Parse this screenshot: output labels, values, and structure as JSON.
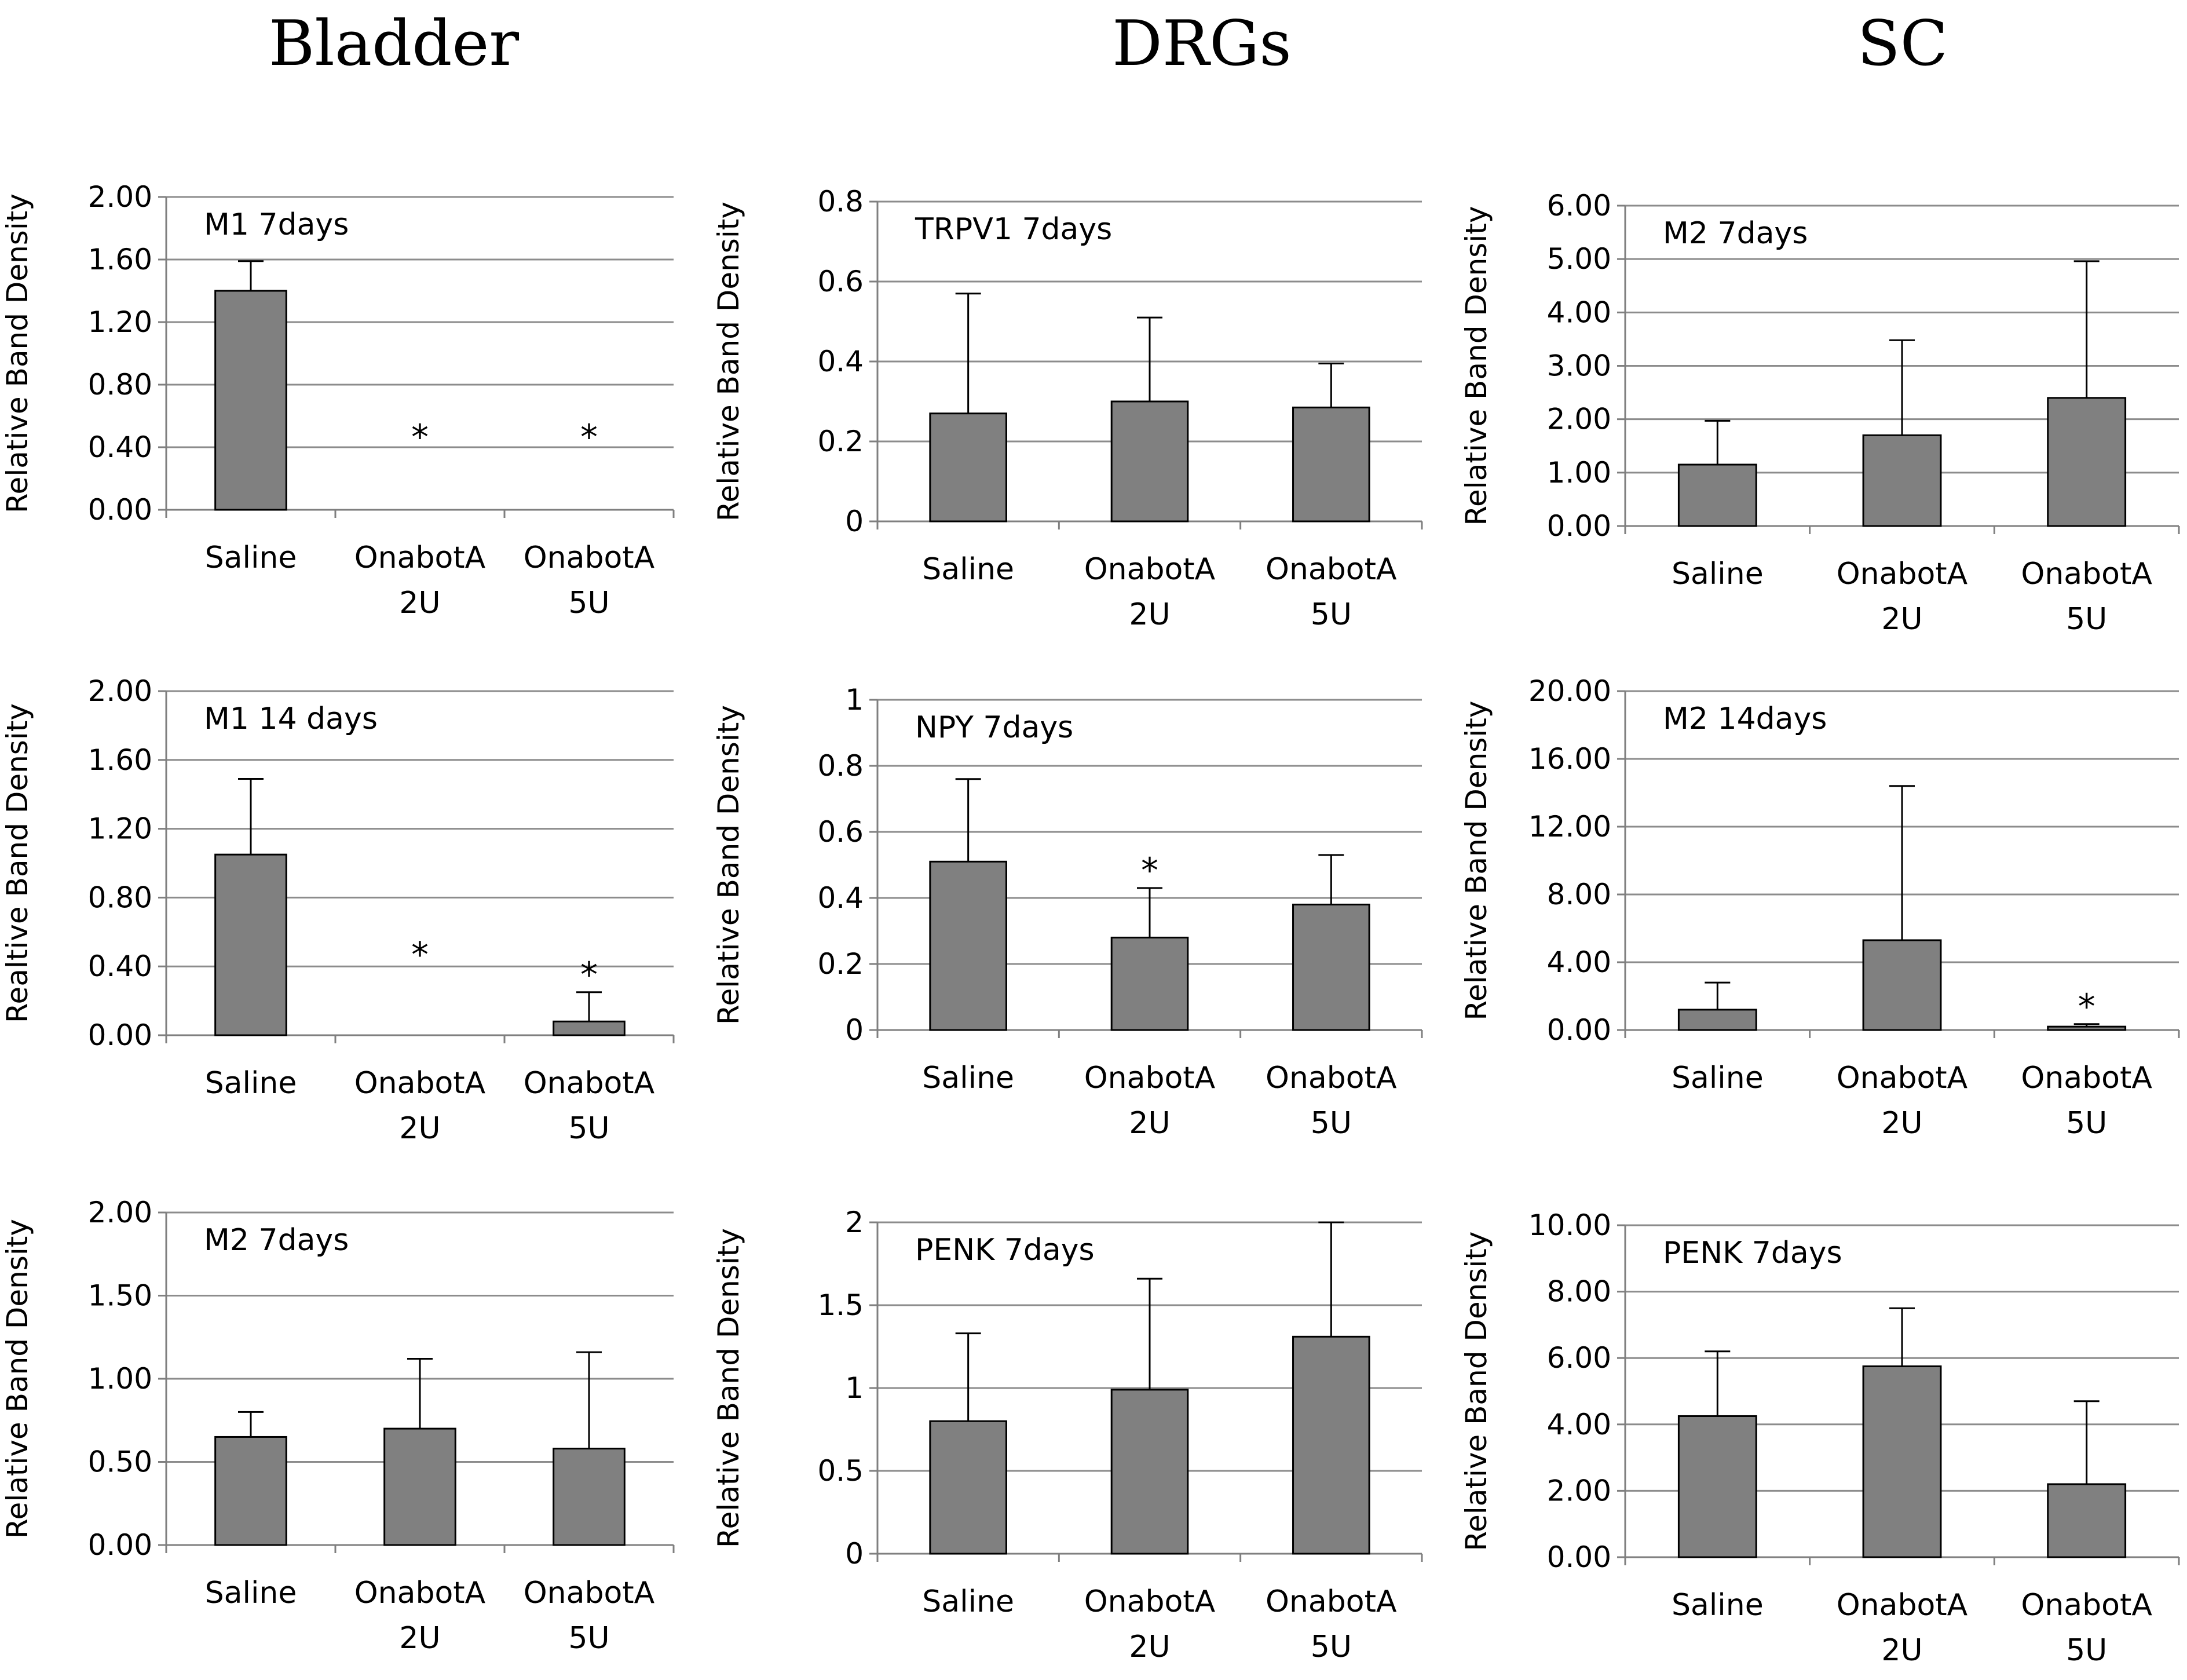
{
  "column_headings": [
    "Bladder",
    "DRGs",
    "SC"
  ],
  "colors": {
    "bar": "#808080",
    "axis": "#7f7f7f",
    "grid": "#8c8c8c",
    "text": "#000000"
  },
  "chart_data": [
    {
      "type": "bar",
      "tissue": "Bladder",
      "title": "M1 7days",
      "ylabel": "Relative Band Density",
      "categories": [
        [
          "Saline"
        ],
        [
          "OnabotA",
          "2U"
        ],
        [
          "OnabotA",
          "5U"
        ]
      ],
      "values": [
        1.4,
        0,
        0
      ],
      "errors": [
        0.19,
        0,
        0
      ],
      "significant": [
        false,
        true,
        true
      ],
      "ylim": [
        0,
        2.0
      ],
      "yticks": [
        "0.00",
        "0.40",
        "0.80",
        "1.20",
        "1.60",
        "2.00"
      ]
    },
    {
      "type": "bar",
      "tissue": "DRGs",
      "title": "TRPV1 7days",
      "ylabel": "Relative Band Density",
      "categories": [
        [
          "Saline"
        ],
        [
          "OnabotA",
          "2U"
        ],
        [
          "OnabotA",
          "5U"
        ]
      ],
      "values": [
        0.27,
        0.3,
        0.285
      ],
      "errors": [
        0.3,
        0.21,
        0.11
      ],
      "significant": [
        false,
        false,
        false
      ],
      "ylim": [
        0,
        0.8
      ],
      "yticks": [
        "0",
        "0.2",
        "0.4",
        "0.6",
        "0.8"
      ]
    },
    {
      "type": "bar",
      "tissue": "SC",
      "title": "M2 7days",
      "ylabel": "Relative Band Density",
      "categories": [
        [
          "Saline"
        ],
        [
          "OnabotA",
          "2U"
        ],
        [
          "OnabotA",
          "5U"
        ]
      ],
      "values": [
        1.15,
        1.7,
        2.4
      ],
      "errors": [
        0.82,
        1.78,
        2.56
      ],
      "significant": [
        false,
        false,
        false
      ],
      "ylim": [
        0,
        6.0
      ],
      "yticks": [
        "0.00",
        "1.00",
        "2.00",
        "3.00",
        "4.00",
        "5.00",
        "6.00"
      ]
    },
    {
      "type": "bar",
      "tissue": "Bladder",
      "title": "M1 14 days",
      "ylabel": "Realtive Band Density",
      "categories": [
        [
          "Saline"
        ],
        [
          "OnabotA",
          "2U"
        ],
        [
          "OnabotA",
          "5U"
        ]
      ],
      "values": [
        1.05,
        0,
        0.08
      ],
      "errors": [
        0.44,
        0,
        0.17
      ],
      "significant": [
        false,
        true,
        true
      ],
      "ylim": [
        0,
        2.0
      ],
      "yticks": [
        "0.00",
        "0.40",
        "0.80",
        "1.20",
        "1.60",
        "2.00"
      ]
    },
    {
      "type": "bar",
      "tissue": "DRGs",
      "title": "NPY 7days",
      "ylabel": "Relative Band Density",
      "categories": [
        [
          "Saline"
        ],
        [
          "OnabotA",
          "2U"
        ],
        [
          "OnabotA",
          "5U"
        ]
      ],
      "values": [
        0.51,
        0.28,
        0.38
      ],
      "errors": [
        0.25,
        0.15,
        0.15
      ],
      "significant": [
        false,
        true,
        false
      ],
      "ylim": [
        0,
        1.0
      ],
      "yticks": [
        "0",
        "0.2",
        "0.4",
        "0.6",
        "0.8",
        "1"
      ]
    },
    {
      "type": "bar",
      "tissue": "SC",
      "title": "M2 14days",
      "ylabel": "Relative Band Density",
      "categories": [
        [
          "Saline"
        ],
        [
          "OnabotA",
          "2U"
        ],
        [
          "OnabotA",
          "5U"
        ]
      ],
      "values": [
        1.2,
        5.3,
        0.2
      ],
      "errors": [
        1.6,
        9.1,
        0.15
      ],
      "significant": [
        false,
        false,
        true
      ],
      "ylim": [
        0,
        20.0
      ],
      "yticks": [
        "0.00",
        "4.00",
        "8.00",
        "12.00",
        "16.00",
        "20.00"
      ]
    },
    {
      "type": "bar",
      "tissue": "Bladder",
      "title": "M2 7days",
      "ylabel": "Relative Band Density",
      "categories": [
        [
          "Saline"
        ],
        [
          "OnabotA",
          "2U"
        ],
        [
          "OnabotA",
          "5U"
        ]
      ],
      "values": [
        0.65,
        0.7,
        0.58
      ],
      "errors": [
        0.15,
        0.42,
        0.58
      ],
      "significant": [
        false,
        false,
        false
      ],
      "ylim": [
        0,
        2.0
      ],
      "yticks": [
        "0.00",
        "0.50",
        "1.00",
        "1.50",
        "2.00"
      ]
    },
    {
      "type": "bar",
      "tissue": "DRGs",
      "title": "PENK 7days",
      "ylabel": "Relative Band Density",
      "categories": [
        [
          "Saline"
        ],
        [
          "OnabotA",
          "2U"
        ],
        [
          "OnabotA",
          "5U"
        ]
      ],
      "values": [
        0.8,
        0.99,
        1.31
      ],
      "errors": [
        0.53,
        0.67,
        0.69
      ],
      "significant": [
        false,
        false,
        false
      ],
      "ylim": [
        0,
        2.0
      ],
      "yticks": [
        "0",
        "0.5",
        "1",
        "1.5",
        "2"
      ]
    },
    {
      "type": "bar",
      "tissue": "SC",
      "title": "PENK 7days",
      "ylabel": "Relative Band Density",
      "categories": [
        [
          "Saline"
        ],
        [
          "OnabotA",
          "2U"
        ],
        [
          "OnabotA",
          "5U"
        ]
      ],
      "values": [
        4.25,
        5.75,
        2.2
      ],
      "errors": [
        1.95,
        1.75,
        2.5
      ],
      "significant": [
        false,
        false,
        false
      ],
      "ylim": [
        0,
        10.0
      ],
      "yticks": [
        "0.00",
        "2.00",
        "4.00",
        "6.00",
        "8.00",
        "10.00"
      ]
    }
  ]
}
